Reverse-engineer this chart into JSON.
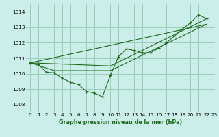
{
  "title": "Graphe pression niveau de la mer (hPa)",
  "background_color": "#cceee8",
  "grid_color": "#99ccbb",
  "line_color": "#1a6b1a",
  "xlim": [
    -0.5,
    23
  ],
  "ylim": [
    1007.5,
    1014.5
  ],
  "yticks": [
    1008,
    1009,
    1010,
    1011,
    1012,
    1013,
    1014
  ],
  "xticks": [
    0,
    1,
    2,
    3,
    4,
    5,
    6,
    7,
    8,
    9,
    10,
    11,
    12,
    13,
    14,
    15,
    16,
    17,
    18,
    19,
    20,
    21,
    22,
    23
  ],
  "series_main": [
    [
      0,
      1010.7
    ],
    [
      1,
      1010.6
    ],
    [
      2,
      1010.1
    ],
    [
      3,
      1010.05
    ],
    [
      4,
      1009.7
    ],
    [
      5,
      1009.45
    ],
    [
      6,
      1009.3
    ],
    [
      7,
      1008.85
    ],
    [
      8,
      1008.75
    ],
    [
      9,
      1008.5
    ],
    [
      10,
      1009.9
    ],
    [
      11,
      1011.1
    ],
    [
      12,
      1011.6
    ],
    [
      13,
      1011.5
    ],
    [
      14,
      1011.35
    ],
    [
      15,
      1011.35
    ],
    [
      16,
      1011.65
    ],
    [
      17,
      1012.0
    ],
    [
      18,
      1012.45
    ],
    [
      19,
      1012.9
    ],
    [
      20,
      1013.3
    ],
    [
      21,
      1013.8
    ],
    [
      22,
      1013.55
    ]
  ],
  "series_line1": [
    [
      0,
      1010.7
    ],
    [
      22,
      1013.2
    ]
  ],
  "series_line2": [
    [
      0,
      1010.7
    ],
    [
      3,
      1010.2
    ],
    [
      10,
      1010.2
    ],
    [
      22,
      1013.2
    ]
  ],
  "series_line3": [
    [
      0,
      1010.7
    ],
    [
      10,
      1010.5
    ],
    [
      22,
      1013.55
    ]
  ]
}
